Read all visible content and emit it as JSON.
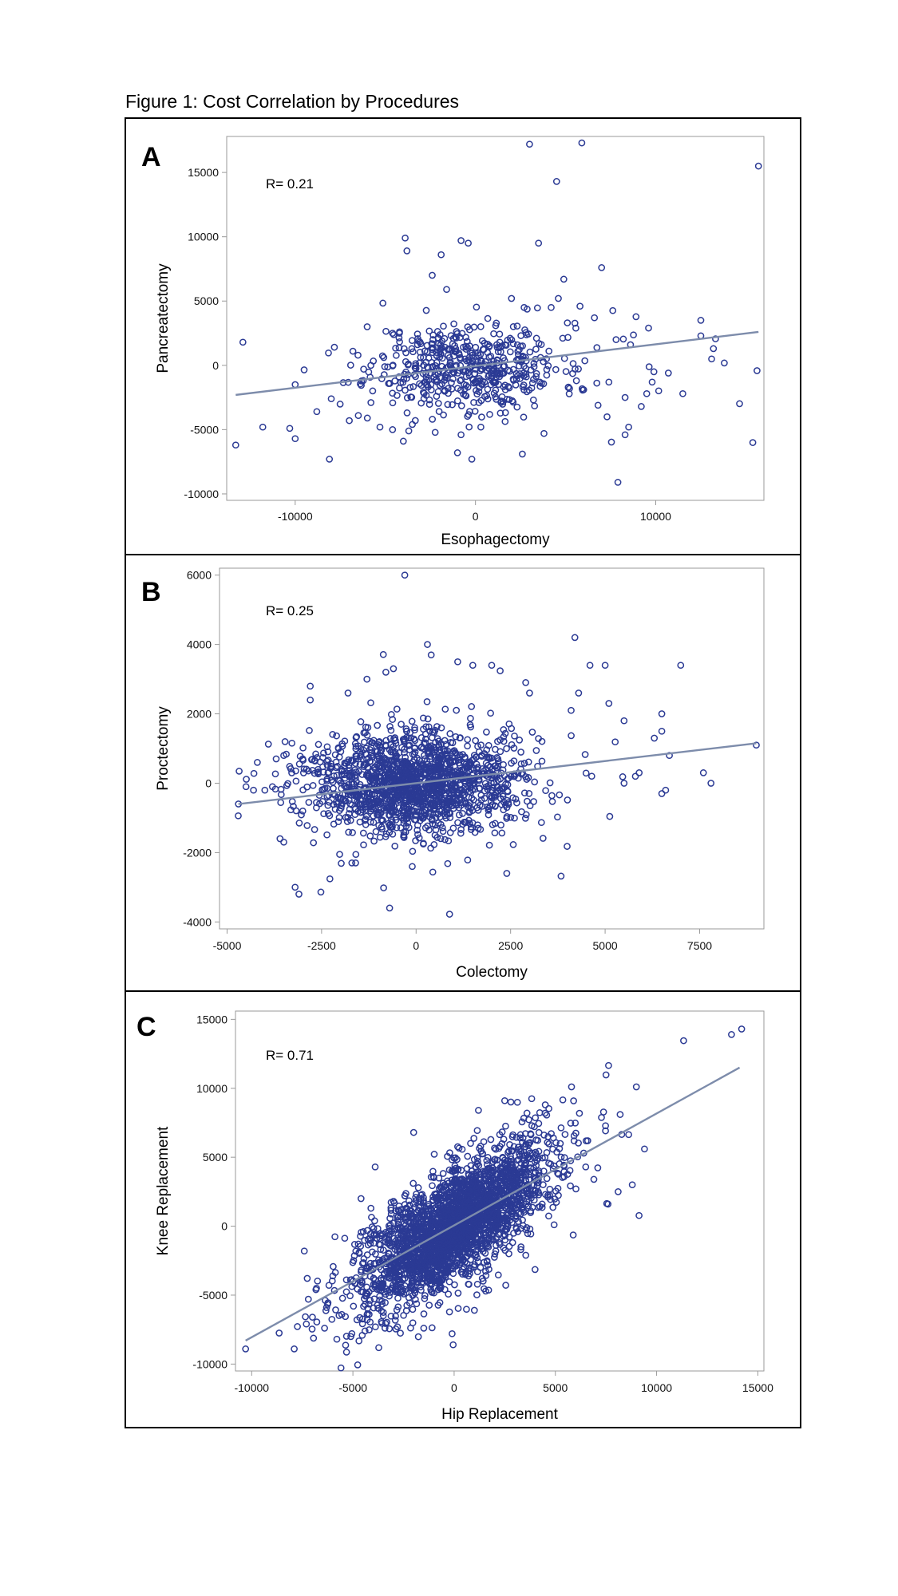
{
  "figure": {
    "title": "Figure 1: Cost Correlation by Procedures"
  },
  "chart_data": [
    {
      "panel": "A",
      "type": "scatter",
      "xlabel": "Esophagectomy",
      "ylabel": "Pancreatectomy",
      "annotation": "R= 0.21",
      "r": 0.21,
      "xlim": [
        -13800,
        16000
      ],
      "ylim": [
        -10500,
        17800
      ],
      "xticks": [
        -10000,
        0,
        10000
      ],
      "yticks": [
        -10000,
        -5000,
        0,
        5000,
        10000,
        15000
      ],
      "fit_line": [
        [
          -13300,
          -2300
        ],
        [
          15700,
          2600
        ]
      ],
      "outliers": [
        [
          3000,
          17200
        ],
        [
          5900,
          17300
        ],
        [
          15700,
          15500
        ],
        [
          4500,
          14300
        ],
        [
          -3900,
          9900
        ],
        [
          -3800,
          8900
        ],
        [
          -1900,
          8600
        ],
        [
          -800,
          9700
        ],
        [
          -400,
          9500
        ],
        [
          3500,
          9500
        ],
        [
          7000,
          7600
        ],
        [
          4900,
          6700
        ],
        [
          -2400,
          7000
        ],
        [
          -13300,
          -6200
        ],
        [
          -12900,
          1800
        ],
        [
          -11800,
          -4800
        ],
        [
          -10300,
          -4900
        ],
        [
          -10000,
          -5700
        ],
        [
          -10000,
          -1500
        ],
        [
          -8800,
          -3600
        ],
        [
          -8100,
          -7300
        ],
        [
          -8000,
          -2600
        ],
        [
          -7000,
          -4300
        ],
        [
          -6800,
          1100
        ],
        [
          -6500,
          -3900
        ],
        [
          -6200,
          -300
        ],
        [
          -6000,
          -4100
        ],
        [
          -5800,
          -2900
        ],
        [
          -5300,
          -4800
        ],
        [
          -4600,
          -5000
        ],
        [
          -4000,
          -5900
        ],
        [
          -3500,
          -4600
        ],
        [
          -3700,
          -5100
        ],
        [
          -1000,
          -6800
        ],
        [
          -800,
          -5400
        ],
        [
          -200,
          -7300
        ],
        [
          300,
          -4800
        ],
        [
          2600,
          -6900
        ],
        [
          3800,
          -5300
        ],
        [
          7300,
          -4000
        ],
        [
          7900,
          -9100
        ],
        [
          8300,
          -5400
        ],
        [
          8500,
          -4800
        ],
        [
          8300,
          -2500
        ],
        [
          9200,
          -3200
        ],
        [
          9500,
          -2200
        ],
        [
          9600,
          2900
        ],
        [
          9800,
          -1300
        ],
        [
          9900,
          -500
        ],
        [
          10700,
          -600
        ],
        [
          11500,
          -2200
        ],
        [
          12500,
          3500
        ],
        [
          12500,
          2300
        ],
        [
          13200,
          1300
        ],
        [
          13100,
          500
        ],
        [
          8600,
          1600
        ],
        [
          7800,
          2000
        ],
        [
          6600,
          3700
        ],
        [
          5800,
          4600
        ],
        [
          5100,
          3300
        ],
        [
          4600,
          5200
        ],
        [
          4200,
          4500
        ],
        [
          2700,
          4500
        ],
        [
          2000,
          5200
        ],
        [
          6800,
          -3100
        ],
        [
          6000,
          -1900
        ],
        [
          5600,
          -1200
        ],
        [
          7400,
          -1300
        ],
        [
          -1600,
          5900
        ]
      ],
      "cluster": {
        "n": 460,
        "center": [
          -500,
          -100
        ],
        "sd": [
          2600,
          1700
        ],
        "seed": 11
      },
      "wide": {
        "n": 70,
        "center": [
          1200,
          0
        ],
        "sd": [
          6000,
          2300
        ],
        "seed": 29
      }
    },
    {
      "panel": "B",
      "type": "scatter",
      "xlabel": "Colectomy",
      "ylabel": "Proctectomy",
      "annotation": "R= 0.25",
      "r": 0.25,
      "xlim": [
        -5200,
        9200
      ],
      "ylim": [
        -4200,
        6200
      ],
      "xticks": [
        -5000,
        -2500,
        0,
        2500,
        5000,
        7500
      ],
      "yticks": [
        -4000,
        -2000,
        0,
        2000,
        4000,
        6000
      ],
      "fit_line": [
        [
          -4700,
          -600
        ],
        [
          9000,
          1150
        ]
      ],
      "outliers": [
        [
          -300,
          6000
        ],
        [
          4200,
          4200
        ],
        [
          300,
          4000
        ],
        [
          400,
          3700
        ],
        [
          7000,
          3400
        ],
        [
          5000,
          3400
        ],
        [
          4600,
          3400
        ],
        [
          9000,
          1100
        ],
        [
          7600,
          300
        ],
        [
          6700,
          800
        ],
        [
          6500,
          2000
        ],
        [
          6500,
          1500
        ],
        [
          6300,
          1300
        ],
        [
          5800,
          200
        ],
        [
          5900,
          300
        ],
        [
          6600,
          -200
        ],
        [
          6500,
          -300
        ],
        [
          -4700,
          -600
        ],
        [
          -4200,
          600
        ],
        [
          -4000,
          -200
        ],
        [
          -3800,
          -100
        ],
        [
          -3700,
          700
        ],
        [
          -3500,
          800
        ],
        [
          -3600,
          -1600
        ],
        [
          -3500,
          -1700
        ],
        [
          -3200,
          -3000
        ],
        [
          -3100,
          -3200
        ],
        [
          -700,
          -3600
        ],
        [
          -100,
          -2400
        ],
        [
          -1600,
          -2300
        ],
        [
          -1700,
          -2300
        ],
        [
          -3000,
          700
        ],
        [
          -2800,
          2800
        ],
        [
          -2800,
          2400
        ],
        [
          -1300,
          3000
        ],
        [
          -800,
          3200
        ],
        [
          -600,
          3300
        ],
        [
          -1800,
          2600
        ],
        [
          2000,
          3400
        ],
        [
          1500,
          3400
        ],
        [
          1100,
          3500
        ],
        [
          3000,
          2600
        ],
        [
          2900,
          2900
        ],
        [
          4100,
          2100
        ],
        [
          5100,
          2300
        ],
        [
          5500,
          1800
        ],
        [
          4300,
          2600
        ],
        [
          7800,
          0
        ],
        [
          5500,
          0
        ],
        [
          -4500,
          -100
        ],
        [
          -4300,
          -200
        ]
      ],
      "cluster": {
        "n": 1500,
        "center": [
          -100,
          0
        ],
        "sd": [
          1350,
          700
        ],
        "seed": 37
      },
      "wide": {
        "n": 120,
        "center": [
          600,
          200
        ],
        "sd": [
          2400,
          1400
        ],
        "seed": 53
      }
    },
    {
      "panel": "C",
      "type": "scatter",
      "xlabel": "Hip Replacement",
      "ylabel": "Knee Replacement",
      "annotation": "R= 0.71",
      "r": 0.71,
      "xlim": [
        -10800,
        15300
      ],
      "ylim": [
        -10500,
        15600
      ],
      "xticks": [
        -10000,
        -5000,
        0,
        5000,
        10000,
        15000
      ],
      "yticks": [
        -10000,
        -5000,
        0,
        5000,
        10000,
        15000
      ],
      "fit_line": [
        [
          -10300,
          -8300
        ],
        [
          14100,
          11500
        ]
      ],
      "outliers": [
        [
          14200,
          14300
        ],
        [
          13700,
          13900
        ],
        [
          -10300,
          -8900
        ],
        [
          -7900,
          -8900
        ],
        [
          -7400,
          -1800
        ],
        [
          -7300,
          -7100
        ],
        [
          -7000,
          -6600
        ],
        [
          -7200,
          -5300
        ],
        [
          -6800,
          -4500
        ],
        [
          -6400,
          -7400
        ],
        [
          -6300,
          -5900
        ],
        [
          -4400,
          -7600
        ],
        [
          -2800,
          -7300
        ],
        [
          -1500,
          -7400
        ],
        [
          -100,
          -7800
        ],
        [
          1000,
          -6100
        ],
        [
          8800,
          3000
        ],
        [
          9400,
          5600
        ],
        [
          9000,
          10100
        ],
        [
          5800,
          10100
        ],
        [
          4500,
          8800
        ],
        [
          3600,
          8200
        ],
        [
          2800,
          9000
        ],
        [
          2500,
          9100
        ],
        [
          1200,
          8400
        ],
        [
          7600,
          1600
        ],
        [
          8100,
          2500
        ],
        [
          -3900,
          4300
        ],
        [
          -2000,
          6800
        ],
        [
          -4600,
          2000
        ],
        [
          6500,
          4300
        ],
        [
          8200,
          8100
        ]
      ],
      "cluster": {
        "n": 2600,
        "center": [
          0,
          0
        ],
        "sd": [
          2200,
          2800
        ],
        "corr": 0.72,
        "seed": 71
      },
      "wide": {
        "n": 180,
        "center": [
          300,
          300
        ],
        "sd": [
          3600,
          4200
        ],
        "corr": 0.72,
        "seed": 97
      }
    }
  ]
}
